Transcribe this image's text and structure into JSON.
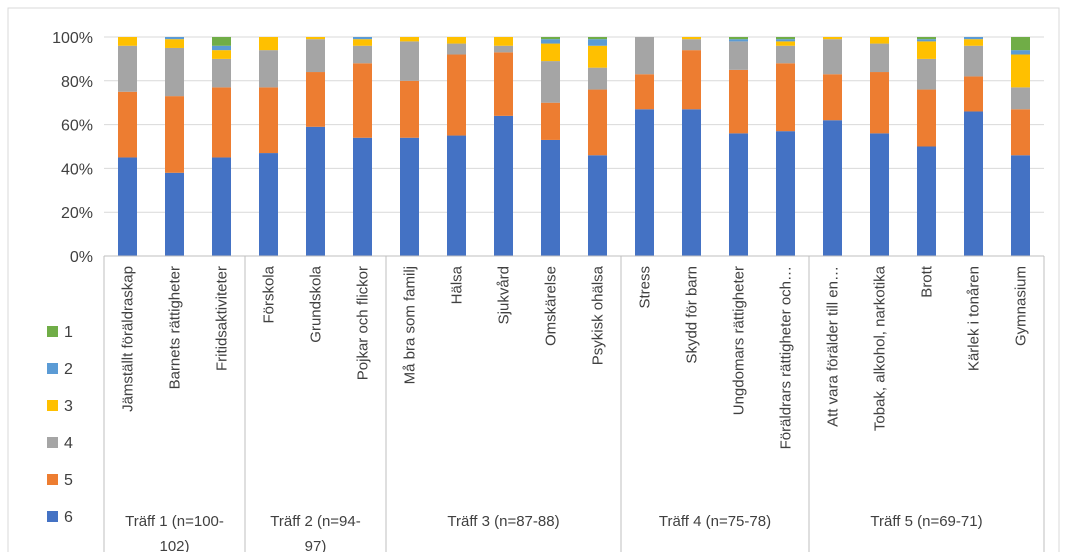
{
  "chart_data": {
    "type": "bar",
    "stacked": true,
    "percent_stacked": true,
    "ylim": [
      0,
      100
    ],
    "y_ticks": [
      "0%",
      "20%",
      "40%",
      "60%",
      "80%",
      "100%"
    ],
    "grid": true,
    "legend_position": "left",
    "categories": [
      "Jämställt föräldraskap",
      "Barnets rättigheter",
      "Fritidsaktiviteter",
      "Förskola",
      "Grundskola",
      "Pojkar och flickor",
      "Må bra som familj",
      "Hälsa",
      "Sjukvård",
      "Omskärelse",
      "Psykisk ohälsa",
      "Stress",
      "Skydd för barn",
      "Ungdomars rättigheter",
      "Föräldrars rättigheter och…",
      "Att vara förälder till en…",
      "Tobak, alkohol, narkotika",
      "Brott",
      "Kärlek i tonåren",
      "Gymnasium"
    ],
    "groups": [
      {
        "label": "Träff 1 (n=100-102)",
        "count": 3
      },
      {
        "label": "Träff 2 (n=94-97)",
        "count": 3
      },
      {
        "label": "Träff 3 (n=87-88)",
        "count": 5
      },
      {
        "label": "Träff 4 (n=75-78)",
        "count": 4
      },
      {
        "label": "Träff 5 (n=69-71)",
        "count": 5
      }
    ],
    "series": [
      {
        "name": "6",
        "color": "#4472C4",
        "values": [
          45,
          38,
          45,
          47,
          59,
          54,
          54,
          55,
          64,
          53,
          46,
          67,
          67,
          56,
          57,
          62,
          56,
          50,
          66,
          46
        ]
      },
      {
        "name": "5",
        "color": "#ED7D31",
        "values": [
          30,
          35,
          32,
          30,
          25,
          34,
          26,
          37,
          29,
          17,
          30,
          16,
          27,
          29,
          31,
          21,
          28,
          26,
          16,
          21
        ]
      },
      {
        "name": "4",
        "color": "#A5A5A5",
        "values": [
          21,
          22,
          13,
          17,
          15,
          8,
          18,
          5,
          3,
          19,
          10,
          17,
          5,
          13,
          8,
          16,
          13,
          14,
          14,
          10
        ]
      },
      {
        "name": "3",
        "color": "#FFC000",
        "values": [
          4,
          4,
          4,
          6,
          1,
          3,
          2,
          3,
          4,
          8,
          10,
          0,
          1,
          0,
          2,
          1,
          3,
          8,
          3,
          15
        ]
      },
      {
        "name": "2",
        "color": "#5B9BD5",
        "values": [
          0,
          1,
          2,
          0,
          0,
          1,
          0,
          0,
          0,
          2,
          3,
          0,
          0,
          1,
          1,
          0,
          0,
          1,
          1,
          2
        ]
      },
      {
        "name": "1",
        "color": "#70AD47",
        "values": [
          0,
          0,
          4,
          0,
          0,
          0,
          0,
          0,
          0,
          1,
          1,
          0,
          0,
          1,
          1,
          0,
          0,
          1,
          0,
          6
        ]
      }
    ]
  }
}
